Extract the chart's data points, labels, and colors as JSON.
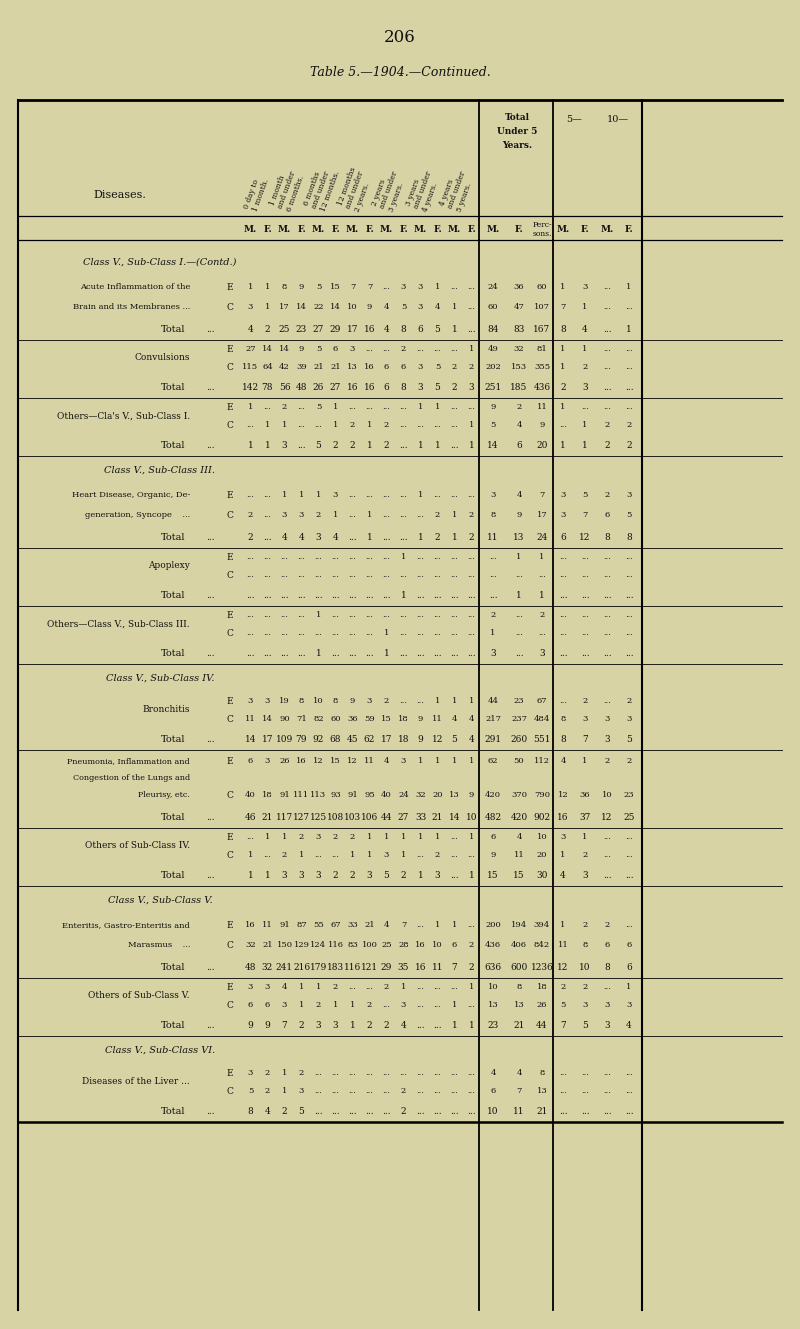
{
  "page_number": "206",
  "title": "Table 5.—1904.—Continued.",
  "bg": "#d8d3a5",
  "fg": "#111111",
  "top_headers": [
    "0 day to\n1 month.",
    "1 month\nand under\n6 months.",
    "6 months\nand under\n12 months.",
    "12 months\nand under\n2 years.",
    "2 years\nand under\n3 years.",
    "3 years\nand under\n4 years.",
    "4 years\nand under\n5 years.",
    "Total\nUnder 5\nYears.",
    "5—",
    "10—"
  ],
  "rows": [
    {
      "label": "Class V., Sub-Class I.—(Contd.)",
      "type": "section"
    },
    {
      "label": "Acute Inflammation of the\nBrain and its Membranes ...",
      "type": "EC",
      "E": [
        "1",
        "1",
        "8",
        "9",
        "5",
        "15",
        "7",
        "7",
        "...",
        "3",
        "3",
        "1",
        "...",
        "...",
        "24",
        "36",
        "60",
        "1",
        "3",
        "...",
        "1"
      ],
      "C": [
        "3",
        "1",
        "17",
        "14",
        "22",
        "14",
        "10",
        "9",
        "4",
        "5",
        "3",
        "4",
        "1",
        "...",
        "60",
        "47",
        "107",
        "7",
        "1",
        "...",
        "..."
      ]
    },
    {
      "label": "Total",
      "type": "total",
      "V": [
        "4",
        "2",
        "25",
        "23",
        "27",
        "29",
        "17",
        "16",
        "4",
        "8",
        "6",
        "5",
        "1",
        "...",
        "84",
        "83",
        "167",
        "8",
        "4",
        "...",
        "1"
      ]
    },
    {
      "label": "Convulsions",
      "type": "EC",
      "E": [
        "27",
        "14",
        "14",
        "9",
        "5",
        "6",
        "3",
        "...",
        "...",
        "2",
        "...",
        "...",
        "...",
        "1",
        "49",
        "32",
        "81",
        "1",
        "1",
        "...",
        "..."
      ],
      "C": [
        "115",
        "64",
        "42",
        "39",
        "21",
        "21",
        "13",
        "16",
        "6",
        "6",
        "3",
        "5",
        "2",
        "2",
        "202",
        "153",
        "355",
        "1",
        "2",
        "...",
        "..."
      ]
    },
    {
      "label": "Total",
      "type": "total",
      "V": [
        "142",
        "78",
        "56",
        "48",
        "26",
        "27",
        "16",
        "16",
        "6",
        "8",
        "3",
        "5",
        "2",
        "3",
        "251",
        "185",
        "436",
        "2",
        "3",
        "...",
        "..."
      ]
    },
    {
      "label": "Others—Cla's V., Sub-Class I.",
      "type": "EC",
      "E": [
        "1",
        "...",
        "2",
        "...",
        "5",
        "1",
        "...",
        "...",
        "...",
        "...",
        "1",
        "1",
        "...",
        "...",
        "9",
        "2",
        "11",
        "1",
        "...",
        "...",
        "..."
      ],
      "C": [
        "...",
        "1",
        "1",
        "...",
        "...",
        "1",
        "2",
        "1",
        "2",
        "...",
        "...",
        "...",
        "...",
        "1",
        "5",
        "4",
        "9",
        "...",
        "1",
        "2",
        "2"
      ]
    },
    {
      "label": "Total",
      "type": "total",
      "V": [
        "1",
        "1",
        "3",
        "...",
        "5",
        "2",
        "2",
        "1",
        "2",
        "...",
        "1",
        "1",
        "...",
        "1",
        "14",
        "6",
        "20",
        "1",
        "1",
        "2",
        "2"
      ]
    },
    {
      "label": "Class V., Sub-Class III.",
      "type": "section"
    },
    {
      "label": "Heart Disease, Organic, De-\ngeneration, Syncope    ...",
      "type": "EC",
      "E": [
        "...",
        "...",
        "1",
        "1",
        "1",
        "3",
        "...",
        "...",
        "...",
        "...",
        "1",
        "...",
        "...",
        "...",
        "3",
        "4",
        "7",
        "3",
        "5",
        "2",
        "3"
      ],
      "C": [
        "2",
        "...",
        "3",
        "3",
        "2",
        "1",
        "...",
        "1",
        "...",
        "...",
        "...",
        "2",
        "1",
        "2",
        "8",
        "9",
        "17",
        "3",
        "7",
        "6",
        "5"
      ]
    },
    {
      "label": "Total",
      "type": "total",
      "V": [
        "2",
        "...",
        "4",
        "4",
        "3",
        "4",
        "...",
        "1",
        "...",
        "...",
        "1",
        "2",
        "1",
        "2",
        "11",
        "13",
        "24",
        "6",
        "12",
        "8",
        "8"
      ]
    },
    {
      "label": "Apoplexy",
      "type": "EC",
      "E": [
        "...",
        "...",
        "...",
        "...",
        "...",
        "...",
        "...",
        "...",
        "...",
        "1",
        "...",
        "...",
        "...",
        "...",
        "...",
        "1",
        "1",
        "...",
        "...",
        "...",
        "..."
      ],
      "C": [
        "...",
        "...",
        "...",
        "...",
        "...",
        "...",
        "...",
        "...",
        "...",
        "...",
        "...",
        "...",
        "...",
        "...",
        "...",
        "...",
        "...",
        "...",
        "...",
        "...",
        "..."
      ]
    },
    {
      "label": "Total",
      "type": "total",
      "V": [
        "...",
        "...",
        "...",
        "...",
        "...",
        "...",
        "...",
        "...",
        "...",
        "1",
        "...",
        "...",
        "...",
        "...",
        "...",
        "1",
        "1",
        "...",
        "...",
        "...",
        "..."
      ]
    },
    {
      "label": "Others—Class V., Sub-Class III.",
      "type": "EC",
      "E": [
        "...",
        "...",
        "...",
        "...",
        "1",
        "...",
        "...",
        "...",
        "...",
        "...",
        "...",
        "...",
        "...",
        "...",
        "2",
        "...",
        "2",
        "...",
        "...",
        "...",
        "..."
      ],
      "C": [
        "...",
        "...",
        "...",
        "...",
        "...",
        "...",
        "...",
        "...",
        "1",
        "...",
        "...",
        "...",
        "...",
        "...",
        "1",
        "...",
        "...",
        "...",
        "...",
        "...",
        "..."
      ]
    },
    {
      "label": "Total",
      "type": "total",
      "V": [
        "...",
        "...",
        "...",
        "...",
        "1",
        "...",
        "...",
        "...",
        "1",
        "...",
        "...",
        "...",
        "...",
        "...",
        "3",
        "...",
        "3",
        "...",
        "...",
        "...",
        "..."
      ]
    },
    {
      "label": "Class V., Sub-Class IV.",
      "type": "section"
    },
    {
      "label": "Bronchitis",
      "type": "EC",
      "E": [
        "3",
        "3",
        "19",
        "8",
        "10",
        "8",
        "9",
        "3",
        "2",
        "...",
        "...",
        "1",
        "1",
        "1",
        "44",
        "23",
        "67",
        "...",
        "2",
        "...",
        "2"
      ],
      "C": [
        "11",
        "14",
        "90",
        "71",
        "82",
        "60",
        "36",
        "59",
        "15",
        "18",
        "9",
        "11",
        "4",
        "4",
        "217",
        "237",
        "484",
        "8",
        "3",
        "3",
        "3"
      ]
    },
    {
      "label": "Total",
      "type": "total",
      "V": [
        "14",
        "17",
        "109",
        "79",
        "92",
        "68",
        "45",
        "62",
        "17",
        "18",
        "9",
        "12",
        "5",
        "4",
        "291",
        "260",
        "551",
        "8",
        "7",
        "3",
        "5"
      ]
    },
    {
      "label": "Pneumonia, Inflammation and\nCongestion of the Lungs and\nPleurisy, etc.",
      "type": "EC",
      "E": [
        "6",
        "3",
        "26",
        "16",
        "12",
        "15",
        "12",
        "11",
        "4",
        "3",
        "1",
        "1",
        "1",
        "1",
        "62",
        "50",
        "112",
        "4",
        "1",
        "2",
        "2"
      ],
      "C": [
        "40",
        "18",
        "91",
        "111",
        "113",
        "93",
        "91",
        "95",
        "40",
        "24",
        "32",
        "20",
        "13",
        "9",
        "420",
        "370",
        "790",
        "12",
        "36",
        "10",
        "23"
      ]
    },
    {
      "label": "Total",
      "type": "total",
      "V": [
        "46",
        "21",
        "117",
        "127",
        "125",
        "108",
        "103",
        "106",
        "44",
        "27",
        "33",
        "21",
        "14",
        "10",
        "482",
        "420",
        "902",
        "16",
        "37",
        "12",
        "25"
      ]
    },
    {
      "label": "Others of Sub-Class IV.",
      "type": "EC",
      "E": [
        "...",
        "1",
        "1",
        "2",
        "3",
        "2",
        "2",
        "1",
        "1",
        "1",
        "1",
        "1",
        "...",
        "1",
        "6",
        "4",
        "10",
        "3",
        "1",
        "...",
        "..."
      ],
      "C": [
        "1",
        "...",
        "2",
        "1",
        "...",
        "...",
        "1",
        "1",
        "3",
        "1",
        "...",
        "2",
        "...",
        "...",
        "9",
        "11",
        "20",
        "1",
        "2",
        "...",
        "..."
      ]
    },
    {
      "label": "Total",
      "type": "total",
      "V": [
        "1",
        "1",
        "3",
        "3",
        "3",
        "2",
        "2",
        "3",
        "5",
        "2",
        "1",
        "3",
        "...",
        "1",
        "15",
        "15",
        "30",
        "4",
        "3",
        "...",
        "..."
      ]
    },
    {
      "label": "Class V., Sub-Class V.",
      "type": "section"
    },
    {
      "label": "Enteritis, Gastro-Enteritis and\nMarasmus    ...",
      "type": "EC",
      "E": [
        "16",
        "11",
        "91",
        "87",
        "55",
        "67",
        "33",
        "21",
        "4",
        "7",
        "...",
        "1",
        "1",
        "...",
        "200",
        "194",
        "394",
        "1",
        "2",
        "2",
        "..."
      ],
      "C": [
        "32",
        "21",
        "150",
        "129",
        "124",
        "116",
        "83",
        "100",
        "25",
        "28",
        "16",
        "10",
        "6",
        "2",
        "436",
        "406",
        "842",
        "11",
        "8",
        "6",
        "6"
      ]
    },
    {
      "label": "Total",
      "type": "total",
      "V": [
        "48",
        "32",
        "241",
        "216",
        "179",
        "183",
        "116",
        "121",
        "29",
        "35",
        "16",
        "11",
        "7",
        "2",
        "636",
        "600",
        "1236",
        "12",
        "10",
        "8",
        "6"
      ]
    },
    {
      "label": "Others of Sub-Class V.",
      "type": "EC",
      "E": [
        "3",
        "3",
        "4",
        "1",
        "1",
        "2",
        "...",
        "...",
        "2",
        "1",
        "...",
        "...",
        "...",
        "1",
        "10",
        "8",
        "18",
        "2",
        "2",
        "...",
        "1"
      ],
      "C": [
        "6",
        "6",
        "3",
        "1",
        "2",
        "1",
        "1",
        "2",
        "...",
        "3",
        "...",
        "...",
        "1",
        "...",
        "13",
        "13",
        "26",
        "5",
        "3",
        "3",
        "3"
      ]
    },
    {
      "label": "Total",
      "type": "total",
      "V": [
        "9",
        "9",
        "7",
        "2",
        "3",
        "3",
        "1",
        "2",
        "2",
        "4",
        "...",
        "...",
        "1",
        "1",
        "23",
        "21",
        "44",
        "7",
        "5",
        "3",
        "4"
      ]
    },
    {
      "label": "Class V., Sub-Class VI.",
      "type": "section"
    },
    {
      "label": "Diseases of the Liver ...",
      "type": "EC",
      "E": [
        "3",
        "2",
        "1",
        "2",
        "...",
        "...",
        "...",
        "...",
        "...",
        "...",
        "...",
        "...",
        "...",
        "...",
        "4",
        "4",
        "8",
        "...",
        "...",
        "...",
        "..."
      ],
      "C": [
        "5",
        "2",
        "1",
        "3",
        "...",
        "...",
        "...",
        "...",
        "...",
        "2",
        "...",
        "...",
        "...",
        "...",
        "6",
        "7",
        "13",
        "...",
        "...",
        "...",
        "..."
      ]
    },
    {
      "label": "Total",
      "type": "total",
      "V": [
        "8",
        "4",
        "2",
        "5",
        "...",
        "...",
        "...",
        "...",
        "...",
        "2",
        "...",
        "...",
        "...",
        "...",
        "10",
        "11",
        "21",
        "...",
        "...",
        "...",
        "..."
      ]
    }
  ]
}
